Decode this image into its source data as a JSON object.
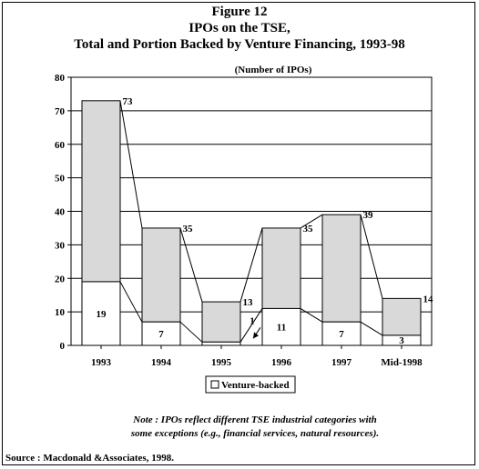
{
  "figure": {
    "label": "Figure 12",
    "title_line1": "IPOs on the TSE,",
    "title_line2": "Total and Portion Backed by Venture Financing, 1993-98",
    "note_line1": "Note : IPOs reflect different TSE industrial categories with",
    "note_line2": "some exceptions (e.g., financial services, natural resources).",
    "source": "Source : Macdonald &Associates, 1998."
  },
  "chart_data": {
    "type": "bar",
    "stacked": true,
    "title": "Figure 12 IPOs on the TSE, Total and Portion Backed by Venture Financing, 1993-98",
    "ylabel": "(Number of IPOs)",
    "xlabel": "",
    "categories": [
      "1993",
      "1994",
      "1995",
      "1996",
      "1997",
      "Mid-1998"
    ],
    "series": [
      {
        "name": "Venture-backed",
        "values": [
          19,
          7,
          1,
          11,
          7,
          3
        ],
        "color": "#ffffff"
      },
      {
        "values": [
          54,
          28,
          12,
          24,
          32,
          11
        ],
        "color": "#d9d9d9"
      }
    ],
    "totals": [
      73,
      35,
      13,
      35,
      39,
      14
    ],
    "venture_labels": [
      "19",
      "7",
      "1",
      "11",
      "7",
      "3"
    ],
    "total_labels": [
      "73",
      "35",
      "13",
      "35",
      "39",
      "14"
    ],
    "ylim": [
      0,
      80
    ],
    "yticks": [
      0,
      10,
      20,
      30,
      40,
      50,
      60,
      70,
      80
    ],
    "grid": true,
    "legend": "bottom-center",
    "connector_lines": true,
    "colors": {
      "total_fill": "#d9d9d9",
      "venture_fill": "#ffffff",
      "line": "#000000"
    }
  }
}
